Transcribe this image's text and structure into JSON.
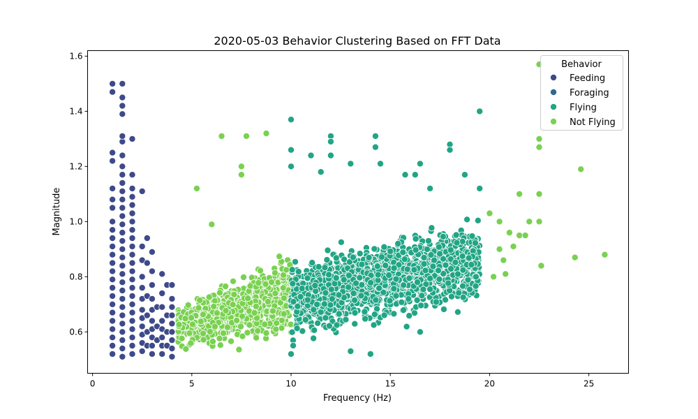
{
  "chart_data": {
    "type": "scatter",
    "title": "2020-05-03 Behavior Clustering Based on FFT Data",
    "xlabel": "Frequency (Hz)",
    "ylabel": "Magnitude",
    "xlim": [
      -0.25,
      27.0
    ],
    "ylim": [
      0.45,
      1.62
    ],
    "xticks": [
      0,
      5,
      10,
      15,
      20,
      25
    ],
    "yticks": [
      0.6,
      0.8,
      1.0,
      1.2,
      1.4,
      1.6
    ],
    "xtick_labels": [
      "0",
      "5",
      "10",
      "15",
      "20",
      "25"
    ],
    "ytick_labels": [
      "0.6",
      "0.8",
      "1.0",
      "1.2",
      "1.4",
      "1.6"
    ],
    "grid": false,
    "legend": {
      "title": "Behavior",
      "placement": "top-right",
      "entries": [
        "Feeding",
        "Foraging",
        "Flying",
        "Not Flying"
      ]
    },
    "series": [
      {
        "name": "Feeding",
        "color": "#3e4a89",
        "points": [
          [
            1.0,
            0.52
          ],
          [
            1.0,
            0.55
          ],
          [
            1.0,
            0.58
          ],
          [
            1.0,
            0.61
          ],
          [
            1.0,
            0.64
          ],
          [
            1.0,
            0.67
          ],
          [
            1.0,
            0.7
          ],
          [
            1.0,
            0.73
          ],
          [
            1.0,
            0.76
          ],
          [
            1.0,
            0.79
          ],
          [
            1.0,
            0.82
          ],
          [
            1.0,
            0.85
          ],
          [
            1.0,
            0.88
          ],
          [
            1.0,
            0.91
          ],
          [
            1.0,
            0.94
          ],
          [
            1.0,
            0.97
          ],
          [
            1.0,
            1.0
          ],
          [
            1.0,
            1.05
          ],
          [
            1.0,
            1.08
          ],
          [
            1.0,
            1.12
          ],
          [
            1.0,
            1.22
          ],
          [
            1.0,
            1.25
          ],
          [
            1.0,
            1.47
          ],
          [
            1.0,
            1.5
          ],
          [
            1.5,
            0.51
          ],
          [
            1.5,
            0.54
          ],
          [
            1.5,
            0.57
          ],
          [
            1.5,
            0.6
          ],
          [
            1.5,
            0.63
          ],
          [
            1.5,
            0.66
          ],
          [
            1.5,
            0.69
          ],
          [
            1.5,
            0.72
          ],
          [
            1.5,
            0.75
          ],
          [
            1.5,
            0.78
          ],
          [
            1.5,
            0.81
          ],
          [
            1.5,
            0.84
          ],
          [
            1.5,
            0.87
          ],
          [
            1.5,
            0.9
          ],
          [
            1.5,
            0.93
          ],
          [
            1.5,
            0.96
          ],
          [
            1.5,
            0.99
          ],
          [
            1.5,
            1.02
          ],
          [
            1.5,
            1.05
          ],
          [
            1.5,
            1.08
          ],
          [
            1.5,
            1.11
          ],
          [
            1.5,
            1.14
          ],
          [
            1.5,
            1.17
          ],
          [
            1.5,
            1.2
          ],
          [
            1.5,
            1.24
          ],
          [
            1.5,
            1.29
          ],
          [
            1.5,
            1.31
          ],
          [
            1.5,
            1.39
          ],
          [
            1.5,
            1.42
          ],
          [
            1.5,
            1.45
          ],
          [
            1.5,
            1.5
          ],
          [
            2.0,
            0.52
          ],
          [
            2.0,
            0.55
          ],
          [
            2.0,
            0.58
          ],
          [
            2.0,
            0.61
          ],
          [
            2.0,
            0.64
          ],
          [
            2.0,
            0.67
          ],
          [
            2.0,
            0.7
          ],
          [
            2.0,
            0.73
          ],
          [
            2.0,
            0.76
          ],
          [
            2.0,
            0.79
          ],
          [
            2.0,
            0.82
          ],
          [
            2.0,
            0.85
          ],
          [
            2.0,
            0.88
          ],
          [
            2.0,
            0.91
          ],
          [
            2.0,
            0.94
          ],
          [
            2.0,
            0.97
          ],
          [
            2.0,
            1.0
          ],
          [
            2.0,
            1.03
          ],
          [
            2.0,
            1.06
          ],
          [
            2.0,
            1.09
          ],
          [
            2.0,
            1.12
          ],
          [
            2.0,
            1.17
          ],
          [
            2.0,
            1.3
          ],
          [
            2.5,
            0.53
          ],
          [
            2.5,
            0.56
          ],
          [
            2.5,
            0.59
          ],
          [
            2.5,
            0.62
          ],
          [
            2.5,
            0.65
          ],
          [
            2.5,
            0.68
          ],
          [
            2.5,
            0.72
          ],
          [
            2.5,
            0.76
          ],
          [
            2.5,
            0.8
          ],
          [
            2.5,
            0.86
          ],
          [
            2.5,
            0.91
          ],
          [
            2.5,
            1.11
          ],
          [
            2.75,
            0.55
          ],
          [
            2.75,
            0.6
          ],
          [
            2.75,
            0.66
          ],
          [
            2.75,
            0.73
          ],
          [
            2.75,
            0.85
          ],
          [
            2.75,
            0.94
          ],
          [
            3.0,
            0.52
          ],
          [
            3.0,
            0.55
          ],
          [
            3.0,
            0.58
          ],
          [
            3.0,
            0.61
          ],
          [
            3.0,
            0.64
          ],
          [
            3.0,
            0.68
          ],
          [
            3.0,
            0.72
          ],
          [
            3.0,
            0.77
          ],
          [
            3.0,
            0.82
          ],
          [
            3.0,
            0.89
          ],
          [
            3.25,
            0.57
          ],
          [
            3.25,
            0.62
          ],
          [
            3.25,
            0.69
          ],
          [
            3.5,
            0.52
          ],
          [
            3.5,
            0.55
          ],
          [
            3.5,
            0.58
          ],
          [
            3.5,
            0.61
          ],
          [
            3.5,
            0.64
          ],
          [
            3.5,
            0.69
          ],
          [
            3.5,
            0.74
          ],
          [
            3.5,
            0.81
          ],
          [
            3.75,
            0.55
          ],
          [
            3.75,
            0.6
          ],
          [
            3.75,
            0.66
          ],
          [
            3.75,
            0.77
          ],
          [
            4.0,
            0.51
          ],
          [
            4.0,
            0.54
          ],
          [
            4.0,
            0.57
          ],
          [
            4.0,
            0.6
          ],
          [
            4.0,
            0.63
          ],
          [
            4.0,
            0.66
          ],
          [
            4.0,
            0.69
          ],
          [
            4.0,
            0.72
          ],
          [
            4.0,
            0.77
          ]
        ]
      },
      {
        "name": "Foraging",
        "color": "#31688e",
        "points": []
      },
      {
        "name": "Flying",
        "color": "#21a585",
        "points": [
          [
            10.0,
            1.37
          ],
          [
            10.0,
            1.26
          ],
          [
            10.0,
            1.2
          ],
          [
            10.0,
            0.52
          ],
          [
            19.5,
            1.4
          ],
          [
            18.0,
            1.28
          ],
          [
            18.0,
            1.26
          ],
          [
            14.25,
            1.31
          ],
          [
            14.25,
            1.27
          ],
          [
            12.0,
            1.31
          ],
          [
            12.0,
            1.29
          ],
          [
            12.0,
            1.24
          ],
          [
            14.5,
            1.21
          ],
          [
            16.5,
            1.21
          ],
          [
            15.75,
            1.17
          ],
          [
            16.25,
            1.17
          ],
          [
            17.0,
            1.12
          ],
          [
            18.75,
            1.17
          ],
          [
            19.5,
            1.12
          ],
          [
            14.0,
            0.52
          ],
          [
            13.0,
            0.53
          ],
          [
            16.5,
            0.6
          ],
          [
            11.0,
            1.24
          ],
          [
            11.5,
            1.18
          ],
          [
            13.0,
            1.21
          ]
        ]
      },
      {
        "name": "Not Flying",
        "color": "#7ad151",
        "points": [
          [
            22.5,
            1.57
          ],
          [
            22.5,
            1.3
          ],
          [
            22.5,
            1.27
          ],
          [
            24.6,
            1.19
          ],
          [
            21.5,
            1.1
          ],
          [
            22.5,
            1.1
          ],
          [
            25.8,
            0.88
          ],
          [
            24.3,
            0.87
          ],
          [
            22.6,
            0.84
          ],
          [
            20.2,
            0.8
          ],
          [
            20.8,
            0.81
          ],
          [
            6.5,
            1.31
          ],
          [
            7.75,
            1.31
          ],
          [
            8.75,
            1.32
          ],
          [
            7.5,
            1.2
          ],
          [
            7.5,
            1.17
          ],
          [
            5.25,
            1.12
          ],
          [
            6.0,
            0.99
          ],
          [
            20.0,
            1.03
          ],
          [
            20.5,
            1.0
          ],
          [
            21.0,
            0.96
          ],
          [
            21.5,
            0.95
          ],
          [
            22.0,
            1.0
          ],
          [
            22.5,
            1.0
          ],
          [
            21.8,
            0.95
          ],
          [
            20.5,
            0.9
          ],
          [
            20.7,
            0.86
          ],
          [
            21.2,
            0.91
          ]
        ]
      }
    ]
  }
}
